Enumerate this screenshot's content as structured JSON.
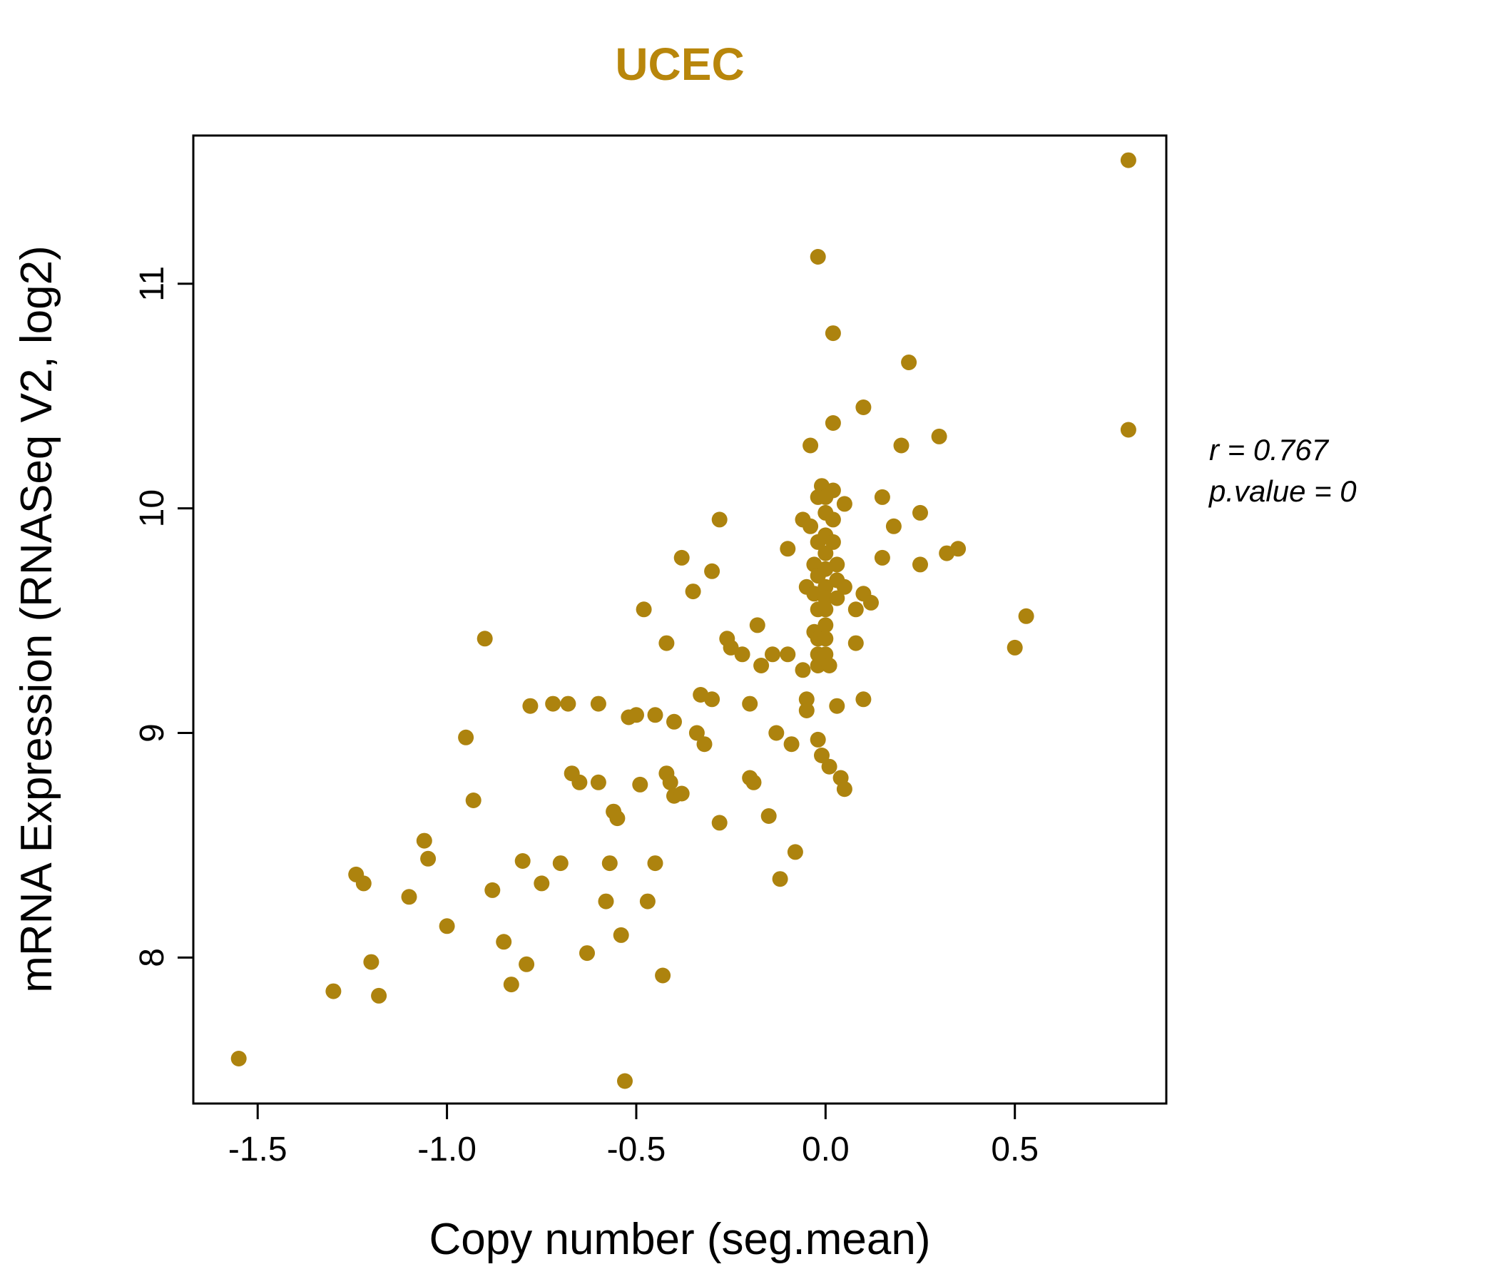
{
  "title": "UCEC",
  "colors": {
    "accent": "#B8860B",
    "point": "#AD830E",
    "axis": "#000000"
  },
  "annotation": {
    "r_line": "r = 0.767",
    "p_line": "p.value = 0"
  },
  "chart_data": {
    "type": "scatter",
    "title": "UCEC",
    "xlabel": "Copy number (seg.mean)",
    "ylabel": "mRNA Expression (RNASeq V2, log2)",
    "xlim": [
      -1.67,
      0.9
    ],
    "ylim": [
      7.35,
      11.66
    ],
    "xticks": [
      -1.5,
      -1.0,
      -0.5,
      0.0,
      0.5
    ],
    "xtick_labels": [
      "-1.5",
      "-1.0",
      "-0.5",
      "0.0",
      "0.5"
    ],
    "yticks": [
      8,
      9,
      10,
      11
    ],
    "ytick_labels": [
      "8",
      "9",
      "10",
      "11"
    ],
    "grid": false,
    "legend": "none",
    "annotations": [
      "r = 0.767",
      "p.value = 0"
    ],
    "points": [
      [
        -1.55,
        7.55
      ],
      [
        -1.3,
        7.85
      ],
      [
        -1.24,
        8.37
      ],
      [
        -1.22,
        8.33
      ],
      [
        -1.2,
        7.98
      ],
      [
        -1.18,
        7.83
      ],
      [
        -1.1,
        8.27
      ],
      [
        -1.06,
        8.52
      ],
      [
        -1.05,
        8.44
      ],
      [
        -1.0,
        8.14
      ],
      [
        -0.95,
        8.98
      ],
      [
        -0.93,
        8.7
      ],
      [
        -0.9,
        9.42
      ],
      [
        -0.88,
        8.3
      ],
      [
        -0.85,
        8.07
      ],
      [
        -0.83,
        7.88
      ],
      [
        -0.8,
        8.43
      ],
      [
        -0.79,
        7.97
      ],
      [
        -0.78,
        9.12
      ],
      [
        -0.75,
        8.33
      ],
      [
        -0.72,
        9.13
      ],
      [
        -0.7,
        8.42
      ],
      [
        -0.68,
        9.13
      ],
      [
        -0.67,
        8.82
      ],
      [
        -0.65,
        8.78
      ],
      [
        -0.63,
        8.02
      ],
      [
        -0.6,
        9.13
      ],
      [
        -0.6,
        8.78
      ],
      [
        -0.58,
        8.25
      ],
      [
        -0.57,
        8.42
      ],
      [
        -0.56,
        8.65
      ],
      [
        -0.55,
        8.62
      ],
      [
        -0.54,
        8.1
      ],
      [
        -0.53,
        7.45
      ],
      [
        -0.52,
        9.07
      ],
      [
        -0.5,
        9.08
      ],
      [
        -0.49,
        8.77
      ],
      [
        -0.48,
        9.55
      ],
      [
        -0.47,
        8.25
      ],
      [
        -0.45,
        9.08
      ],
      [
        -0.45,
        8.42
      ],
      [
        -0.43,
        7.92
      ],
      [
        -0.42,
        9.4
      ],
      [
        -0.42,
        8.82
      ],
      [
        -0.41,
        8.78
      ],
      [
        -0.4,
        8.72
      ],
      [
        -0.4,
        9.05
      ],
      [
        -0.38,
        9.78
      ],
      [
        -0.38,
        8.73
      ],
      [
        -0.35,
        9.63
      ],
      [
        -0.34,
        9.0
      ],
      [
        -0.33,
        9.17
      ],
      [
        -0.32,
        8.95
      ],
      [
        -0.3,
        9.72
      ],
      [
        -0.3,
        9.15
      ],
      [
        -0.28,
        9.95
      ],
      [
        -0.28,
        8.6
      ],
      [
        -0.26,
        9.42
      ],
      [
        -0.25,
        9.38
      ],
      [
        -0.22,
        9.35
      ],
      [
        -0.2,
        9.13
      ],
      [
        -0.2,
        8.8
      ],
      [
        -0.19,
        8.78
      ],
      [
        -0.18,
        9.48
      ],
      [
        -0.17,
        9.3
      ],
      [
        -0.15,
        8.63
      ],
      [
        -0.14,
        9.35
      ],
      [
        -0.13,
        9.0
      ],
      [
        -0.12,
        8.35
      ],
      [
        -0.1,
        9.82
      ],
      [
        -0.1,
        9.35
      ],
      [
        -0.09,
        8.95
      ],
      [
        -0.08,
        8.47
      ],
      [
        -0.06,
        9.95
      ],
      [
        -0.06,
        9.28
      ],
      [
        -0.05,
        9.65
      ],
      [
        -0.05,
        9.15
      ],
      [
        -0.05,
        9.1
      ],
      [
        -0.04,
        10.28
      ],
      [
        -0.04,
        9.92
      ],
      [
        -0.03,
        9.75
      ],
      [
        -0.03,
        9.62
      ],
      [
        -0.03,
        9.45
      ],
      [
        -0.02,
        11.12
      ],
      [
        -0.02,
        10.05
      ],
      [
        -0.02,
        9.85
      ],
      [
        -0.02,
        9.7
      ],
      [
        -0.02,
        9.55
      ],
      [
        -0.02,
        9.42
      ],
      [
        -0.02,
        9.35
      ],
      [
        -0.02,
        9.3
      ],
      [
        -0.02,
        8.97
      ],
      [
        -0.01,
        8.9
      ],
      [
        -0.01,
        10.1
      ],
      [
        0.0,
        10.05
      ],
      [
        0.0,
        9.98
      ],
      [
        0.0,
        9.88
      ],
      [
        0.0,
        9.8
      ],
      [
        0.0,
        9.73
      ],
      [
        0.0,
        9.65
      ],
      [
        0.0,
        9.6
      ],
      [
        0.0,
        9.55
      ],
      [
        0.0,
        9.48
      ],
      [
        0.0,
        9.42
      ],
      [
        0.0,
        9.35
      ],
      [
        0.01,
        9.3
      ],
      [
        0.01,
        8.85
      ],
      [
        0.02,
        10.78
      ],
      [
        0.02,
        10.38
      ],
      [
        0.02,
        10.08
      ],
      [
        0.02,
        9.95
      ],
      [
        0.02,
        9.85
      ],
      [
        0.03,
        9.75
      ],
      [
        0.03,
        9.68
      ],
      [
        0.03,
        9.6
      ],
      [
        0.03,
        9.12
      ],
      [
        0.04,
        8.8
      ],
      [
        0.05,
        10.02
      ],
      [
        0.05,
        9.65
      ],
      [
        0.05,
        8.75
      ],
      [
        0.08,
        9.55
      ],
      [
        0.08,
        9.4
      ],
      [
        0.1,
        10.45
      ],
      [
        0.1,
        9.62
      ],
      [
        0.1,
        9.15
      ],
      [
        0.12,
        9.58
      ],
      [
        0.15,
        10.05
      ],
      [
        0.15,
        9.78
      ],
      [
        0.18,
        9.92
      ],
      [
        0.2,
        10.28
      ],
      [
        0.22,
        10.65
      ],
      [
        0.25,
        9.98
      ],
      [
        0.25,
        9.75
      ],
      [
        0.3,
        10.32
      ],
      [
        0.32,
        9.8
      ],
      [
        0.35,
        9.82
      ],
      [
        0.5,
        9.38
      ],
      [
        0.53,
        9.52
      ],
      [
        0.8,
        11.55
      ],
      [
        0.8,
        10.35
      ]
    ]
  }
}
